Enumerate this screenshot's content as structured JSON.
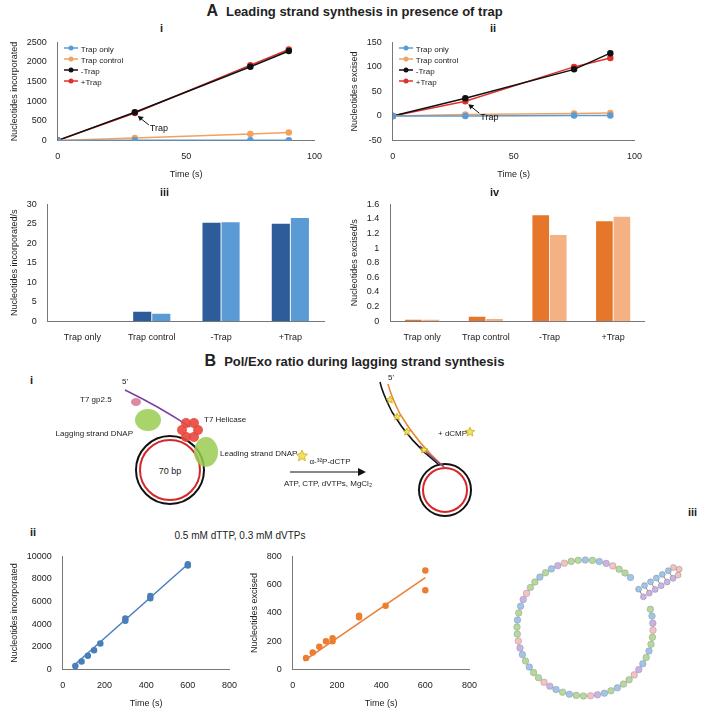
{
  "headings": [
    {
      "letter": "A",
      "text": "Leading strand synthesis in presence of trap"
    },
    {
      "letter": "B",
      "text": "Pol/Exo ratio during lagging strand synthesis"
    }
  ],
  "chart_data": [
    {
      "panel": "i",
      "type": "line",
      "x_label": "Time (s)",
      "y_label": "Nucleotides incorporated",
      "xlim": [
        0,
        100
      ],
      "xticks": [
        0,
        50,
        100
      ],
      "ylim": [
        0,
        2500
      ],
      "yticks": [
        0,
        500,
        1000,
        1500,
        2000,
        2500
      ],
      "grid": false,
      "legend": "top-left",
      "marker": "circle",
      "series": [
        {
          "name": "Trap only",
          "color": "#5b9bd5",
          "x": [
            0,
            30,
            75,
            90
          ],
          "values": [
            0,
            5,
            5,
            5
          ]
        },
        {
          "name": "Trap control",
          "color": "#f4a15d",
          "x": [
            0,
            30,
            75,
            90
          ],
          "values": [
            0,
            60,
            165,
            200
          ]
        },
        {
          "name": "-Trap",
          "color": "#111111",
          "x": [
            0,
            30,
            75,
            90
          ],
          "values": [
            0,
            720,
            1880,
            2280
          ]
        },
        {
          "name": "+Trap",
          "color": "#e0302e",
          "x": [
            0,
            30,
            75,
            90
          ],
          "values": [
            0,
            700,
            1920,
            2320
          ]
        }
      ],
      "annotations": [
        {
          "text": "Trap",
          "x": 30,
          "y": 700
        }
      ]
    },
    {
      "panel": "ii",
      "type": "line",
      "x_label": "Time (s)",
      "y_label": "Nucleotides excised",
      "xlim": [
        0,
        100
      ],
      "xticks": [
        0,
        50,
        100
      ],
      "ylim": [
        -50,
        150
      ],
      "yticks": [
        -50,
        0,
        50,
        100,
        150
      ],
      "grid": false,
      "legend": "top-left",
      "marker": "circle",
      "series": [
        {
          "name": "Trap only",
          "color": "#5b9bd5",
          "x": [
            0,
            30,
            75,
            90
          ],
          "values": [
            0,
            0,
            1,
            1
          ]
        },
        {
          "name": "Trap control",
          "color": "#f4a15d",
          "x": [
            0,
            30,
            75,
            90
          ],
          "values": [
            0,
            3,
            5,
            6
          ]
        },
        {
          "name": "-Trap",
          "color": "#111111",
          "x": [
            0,
            30,
            75,
            90
          ],
          "values": [
            0,
            36,
            95,
            128
          ]
        },
        {
          "name": "+Trap",
          "color": "#e0302e",
          "x": [
            0,
            30,
            75,
            90
          ],
          "values": [
            0,
            30,
            100,
            118
          ]
        }
      ],
      "annotations": [
        {
          "text": "Trap",
          "x": 30,
          "y": 30
        }
      ]
    },
    {
      "panel": "iii",
      "type": "bar",
      "y_label": "Nucleotides incorporated/s",
      "categories": [
        "Trap only",
        "Trap control",
        "-Trap",
        "+Trap"
      ],
      "ylim": [
        0,
        30
      ],
      "yticks": [
        0,
        5,
        10,
        15,
        20,
        25,
        30
      ],
      "grid": false,
      "series": [
        {
          "color": "#2e5c9a",
          "values": [
            0,
            2.4,
            25.3,
            25
          ]
        },
        {
          "color": "#5b9bd5",
          "values": [
            0,
            1.9,
            25.4,
            26.5
          ]
        }
      ]
    },
    {
      "panel": "iv",
      "type": "bar",
      "y_label": "Nucleotides excised/s",
      "categories": [
        "Trap only",
        "Trap control",
        "-Trap",
        "+Trap"
      ],
      "ylim": [
        0,
        1.6
      ],
      "yticks": [
        0,
        0.2,
        0.4,
        0.6,
        0.8,
        1,
        1.2,
        1.4,
        1.6
      ],
      "grid": false,
      "series": [
        {
          "color": "#e5762a",
          "values": [
            0.02,
            0.06,
            1.45,
            1.37
          ]
        },
        {
          "color": "#f4b183",
          "values": [
            0.02,
            0.03,
            1.18,
            1.43
          ]
        }
      ]
    },
    {
      "panel": "ii",
      "type": "scatter",
      "title": "0.5 mM dTTP, 0.3 mM dVTPs",
      "x_label": "Time (s)",
      "y_label": "Nucleotides incorporated",
      "xlim": [
        0,
        800
      ],
      "xticks": [
        0,
        200,
        400,
        600,
        800
      ],
      "ylim": [
        0,
        10000
      ],
      "yticks": [
        0,
        2000,
        4000,
        6000,
        8000,
        10000
      ],
      "grid": false,
      "marker": "circle",
      "series": [
        {
          "color": "#4a7ebb",
          "x": [
            60,
            90,
            120,
            150,
            180,
            300,
            300,
            420,
            420,
            600,
            600
          ],
          "values": [
            300,
            700,
            1200,
            1700,
            2300,
            4500,
            4300,
            6500,
            6300,
            9300,
            9200
          ]
        }
      ],
      "trendline": {
        "color": "#4a7ebb",
        "x": [
          50,
          600
        ],
        "values": [
          300,
          9300
        ]
      }
    },
    {
      "panel": "",
      "type": "scatter",
      "x_label": "Time (s)",
      "y_label": "Nucleotides excised",
      "xlim": [
        0,
        800
      ],
      "xticks": [
        0,
        200,
        400,
        600,
        800
      ],
      "ylim": [
        0,
        800
      ],
      "yticks": [
        0,
        200,
        400,
        600,
        800
      ],
      "grid": false,
      "marker": "circle",
      "series": [
        {
          "color": "#ed7d31",
          "x": [
            60,
            90,
            120,
            150,
            180,
            180,
            300,
            300,
            420,
            600,
            600
          ],
          "values": [
            80,
            120,
            160,
            200,
            200,
            220,
            380,
            370,
            450,
            700,
            560
          ]
        }
      ],
      "trendline": {
        "color": "#ed7d31",
        "x": [
          50,
          600
        ],
        "values": [
          60,
          650
        ]
      }
    }
  ],
  "diagram": {
    "panel": "i",
    "labels": {
      "gp25": "T7 gp2.5",
      "lag": "Lagging strand DNAP",
      "helicase": "T7 Helicase",
      "lead": "Leading strand DNAP",
      "circle": "70 bp",
      "five_left": "5'",
      "five_right": "5'",
      "dntp": "α-³²P-dCTP",
      "reagents": "ATP, CTP, dVTPs, MgCl₂",
      "product": "+ dCMP"
    }
  },
  "structure": {
    "panel": "iii",
    "loop_nucleotides": 56,
    "stem_pairs": 6,
    "colors": [
      "#b5d99c",
      "#9fc5e8",
      "#c9b3e6",
      "#f4c2c2",
      "#b5d99c",
      "#b5d99c",
      "#9fc5e8"
    ]
  }
}
